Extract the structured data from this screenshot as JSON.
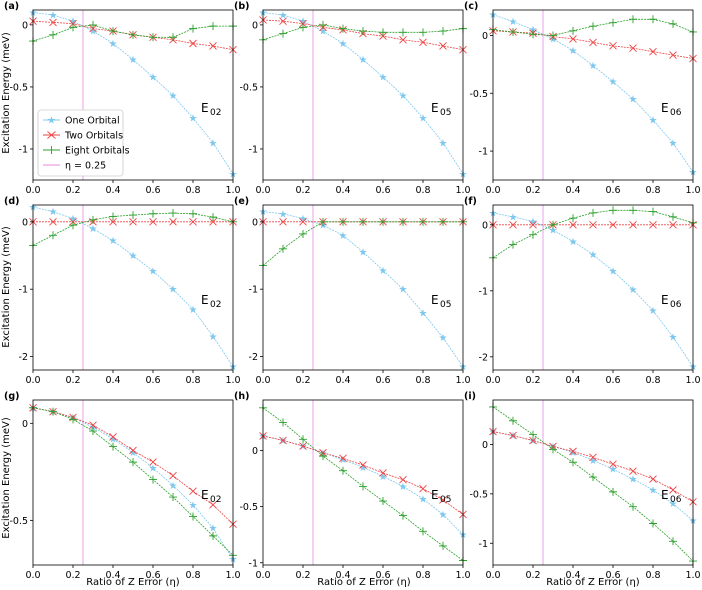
{
  "figure": {
    "ylabel": "Excitation Energy (meV)",
    "xlabel": "Ratio of Z Error (η)",
    "legend": [
      {
        "label": "One Orbital",
        "series": 0
      },
      {
        "label": "Two Orbitals",
        "series": 1
      },
      {
        "label": "Eight Orbitals",
        "series": 2
      },
      {
        "label": "η = 0.25",
        "series": 3
      }
    ]
  },
  "colors": {
    "one_orbital": "#7ec8ee",
    "two_orbitals": "#ee4444",
    "eight_orbitals": "#2ca02c",
    "eta_line": "#e68ae6",
    "axis": "#000000"
  },
  "chart_data": [
    {
      "type": "line",
      "panel_label": "(a)",
      "annotation": "E",
      "annotation_sub": "02",
      "x": [
        0,
        0.1,
        0.2,
        0.3,
        0.4,
        0.5,
        0.6,
        0.7,
        0.8,
        0.9,
        1.0
      ],
      "xlim": [
        0,
        1
      ],
      "ylim": [
        -1.25,
        0.12
      ],
      "xticks": [
        0,
        0.2,
        0.4,
        0.6,
        0.8,
        1.0
      ],
      "xtick_labels": [
        "0.0",
        "0.2",
        "0.4",
        "0.6",
        "0.8",
        "1.0"
      ],
      "yticks": [
        0,
        -0.5,
        -1
      ],
      "ytick_labels": [
        "0",
        "-0.5",
        "-1"
      ],
      "marker_line": 0.25,
      "series": [
        {
          "name": "One Orbital",
          "values": [
            0.1,
            0.08,
            0.03,
            -0.05,
            -0.15,
            -0.28,
            -0.42,
            -0.57,
            -0.75,
            -0.95,
            -1.2
          ]
        },
        {
          "name": "Two Orbitals",
          "values": [
            0.03,
            0.02,
            0.01,
            -0.03,
            -0.05,
            -0.08,
            -0.1,
            -0.12,
            -0.15,
            -0.17,
            -0.2
          ]
        },
        {
          "name": "Eight Orbitals",
          "values": [
            -0.13,
            -0.08,
            -0.02,
            0.0,
            -0.05,
            -0.08,
            -0.1,
            -0.1,
            -0.03,
            -0.01,
            -0.01
          ]
        }
      ]
    },
    {
      "type": "line",
      "panel_label": "(b)",
      "annotation": "E",
      "annotation_sub": "05",
      "x": [
        0,
        0.1,
        0.2,
        0.3,
        0.4,
        0.5,
        0.6,
        0.7,
        0.8,
        0.9,
        1.0
      ],
      "xlim": [
        0,
        1
      ],
      "ylim": [
        -1.25,
        0.12
      ],
      "xticks": [
        0,
        0.2,
        0.4,
        0.6,
        0.8,
        1.0
      ],
      "xtick_labels": [
        "0.0",
        "0.2",
        "0.4",
        "0.6",
        "0.8",
        "1.0"
      ],
      "yticks": [
        0,
        -0.5,
        -1
      ],
      "ytick_labels": [
        "0",
        "-0.5",
        "-1"
      ],
      "marker_line": 0.25,
      "series": [
        {
          "name": "One Orbital",
          "values": [
            0.1,
            0.08,
            0.03,
            -0.05,
            -0.15,
            -0.28,
            -0.42,
            -0.57,
            -0.75,
            -0.95,
            -1.2
          ]
        },
        {
          "name": "Two Orbitals",
          "values": [
            0.04,
            0.03,
            0.01,
            -0.02,
            -0.04,
            -0.07,
            -0.09,
            -0.12,
            -0.14,
            -0.17,
            -0.2
          ]
        },
        {
          "name": "Eight Orbitals",
          "values": [
            -0.12,
            -0.07,
            -0.02,
            0.0,
            -0.03,
            -0.05,
            -0.06,
            -0.06,
            -0.06,
            -0.05,
            -0.03
          ]
        }
      ]
    },
    {
      "type": "line",
      "panel_label": "(c)",
      "annotation": "E",
      "annotation_sub": "06",
      "x": [
        0,
        0.1,
        0.2,
        0.3,
        0.4,
        0.5,
        0.6,
        0.7,
        0.8,
        0.9,
        1.0
      ],
      "xlim": [
        0,
        1
      ],
      "ylim": [
        -1.25,
        0.22
      ],
      "xticks": [
        0,
        0.2,
        0.4,
        0.6,
        0.8,
        1.0
      ],
      "xtick_labels": [
        "0.0",
        "0.2",
        "0.4",
        "0.6",
        "0.8",
        "1.0"
      ],
      "yticks": [
        0,
        -0.5,
        -1
      ],
      "ytick_labels": [
        "0",
        "-0.5",
        "-1"
      ],
      "marker_line": 0.25,
      "series": [
        {
          "name": "One Orbital",
          "values": [
            0.18,
            0.12,
            0.05,
            -0.03,
            -0.13,
            -0.26,
            -0.4,
            -0.55,
            -0.73,
            -0.93,
            -1.18
          ]
        },
        {
          "name": "Two Orbitals",
          "values": [
            0.04,
            0.03,
            0.02,
            -0.01,
            -0.03,
            -0.06,
            -0.09,
            -0.11,
            -0.14,
            -0.17,
            -0.2
          ]
        },
        {
          "name": "Eight Orbitals",
          "values": [
            0.05,
            0.03,
            0.01,
            0.0,
            0.04,
            0.08,
            0.11,
            0.14,
            0.14,
            0.1,
            0.03
          ]
        }
      ]
    },
    {
      "type": "line",
      "panel_label": "(d)",
      "annotation": "E",
      "annotation_sub": "02",
      "x": [
        0,
        0.1,
        0.2,
        0.3,
        0.4,
        0.5,
        0.6,
        0.7,
        0.8,
        0.9,
        1.0
      ],
      "xlim": [
        0,
        1
      ],
      "ylim": [
        -2.2,
        0.25
      ],
      "xticks": [
        0,
        0.2,
        0.4,
        0.6,
        0.8,
        1.0
      ],
      "xtick_labels": [
        "0.0",
        "0.2",
        "0.4",
        "0.6",
        "0.8",
        "1.0"
      ],
      "yticks": [
        0,
        -1,
        -2
      ],
      "ytick_labels": [
        "0",
        "-1",
        "-2"
      ],
      "marker_line": 0.25,
      "series": [
        {
          "name": "One Orbital",
          "values": [
            0.22,
            0.15,
            0.05,
            -0.1,
            -0.28,
            -0.5,
            -0.73,
            -1.0,
            -1.3,
            -1.7,
            -2.15
          ]
        },
        {
          "name": "Two Orbitals",
          "values": [
            0,
            0,
            0,
            0,
            0,
            0,
            0,
            0,
            0,
            0,
            0
          ]
        },
        {
          "name": "Eight Orbitals",
          "values": [
            -0.35,
            -0.2,
            -0.05,
            0.03,
            0.08,
            0.1,
            0.12,
            0.13,
            0.12,
            0.07,
            0.0
          ]
        }
      ]
    },
    {
      "type": "line",
      "panel_label": "(e)",
      "annotation": "E",
      "annotation_sub": "05",
      "x": [
        0,
        0.1,
        0.2,
        0.3,
        0.4,
        0.5,
        0.6,
        0.7,
        0.8,
        0.9,
        1.0
      ],
      "xlim": [
        0,
        1
      ],
      "ylim": [
        -2.2,
        0.25
      ],
      "xticks": [
        0,
        0.2,
        0.4,
        0.6,
        0.8,
        1.0
      ],
      "xtick_labels": [
        "0.0",
        "0.2",
        "0.4",
        "0.6",
        "0.8",
        "1.0"
      ],
      "yticks": [
        0,
        -1,
        -2
      ],
      "ytick_labels": [
        "0",
        "-1",
        "-2"
      ],
      "marker_line": 0.25,
      "series": [
        {
          "name": "One Orbital",
          "values": [
            0.15,
            0.12,
            0.05,
            -0.05,
            -0.2,
            -0.45,
            -0.72,
            -1.0,
            -1.35,
            -1.72,
            -2.15
          ]
        },
        {
          "name": "Two Orbitals",
          "values": [
            0,
            0,
            0,
            0,
            0,
            0,
            0,
            0,
            0,
            0,
            0
          ]
        },
        {
          "name": "Eight Orbitals",
          "values": [
            -0.65,
            -0.4,
            -0.18,
            0.0,
            0.0,
            0.0,
            0.0,
            0.0,
            0.0,
            0.0,
            0.0
          ]
        }
      ]
    },
    {
      "type": "line",
      "panel_label": "(f)",
      "annotation": "E",
      "annotation_sub": "06",
      "x": [
        0,
        0.1,
        0.2,
        0.3,
        0.4,
        0.5,
        0.6,
        0.7,
        0.8,
        0.9,
        1.0
      ],
      "xlim": [
        0,
        1
      ],
      "ylim": [
        -2.2,
        0.3
      ],
      "xticks": [
        0,
        0.2,
        0.4,
        0.6,
        0.8,
        1.0
      ],
      "xtick_labels": [
        "0.0",
        "0.2",
        "0.4",
        "0.6",
        "0.8",
        "1.0"
      ],
      "yticks": [
        0,
        -1,
        -2
      ],
      "ytick_labels": [
        "0",
        "-1",
        "-2"
      ],
      "marker_line": 0.25,
      "series": [
        {
          "name": "One Orbital",
          "values": [
            0.18,
            0.12,
            0.05,
            -0.08,
            -0.25,
            -0.45,
            -0.7,
            -0.98,
            -1.3,
            -1.7,
            -2.15
          ]
        },
        {
          "name": "Two Orbitals",
          "values": [
            0,
            0,
            0,
            0,
            0,
            0,
            0,
            0,
            0,
            0,
            0
          ]
        },
        {
          "name": "Eight Orbitals",
          "values": [
            -0.5,
            -0.3,
            -0.15,
            0.0,
            0.1,
            0.18,
            0.22,
            0.22,
            0.2,
            0.12,
            0.03
          ]
        }
      ]
    },
    {
      "type": "line",
      "panel_label": "(g)",
      "annotation": "E",
      "annotation_sub": "02",
      "x": [
        0,
        0.1,
        0.2,
        0.3,
        0.4,
        0.5,
        0.6,
        0.7,
        0.8,
        0.9,
        1.0
      ],
      "xlim": [
        0,
        1
      ],
      "ylim": [
        -0.73,
        0.12
      ],
      "xticks": [
        0,
        0.2,
        0.4,
        0.6,
        0.8,
        1.0
      ],
      "xtick_labels": [
        "0.0",
        "0.2",
        "0.4",
        "0.6",
        "0.8",
        "1.0"
      ],
      "yticks": [
        0,
        -0.5
      ],
      "ytick_labels": [
        "0",
        "-0.5"
      ],
      "marker_line": 0.25,
      "series": [
        {
          "name": "One Orbital",
          "values": [
            0.08,
            0.06,
            0.03,
            -0.02,
            -0.08,
            -0.15,
            -0.23,
            -0.32,
            -0.42,
            -0.54,
            -0.7
          ]
        },
        {
          "name": "Two Orbitals",
          "values": [
            0.08,
            0.06,
            0.03,
            -0.01,
            -0.07,
            -0.14,
            -0.2,
            -0.27,
            -0.35,
            -0.42,
            -0.52
          ]
        },
        {
          "name": "Eight Orbitals",
          "values": [
            0.08,
            0.06,
            0.02,
            -0.04,
            -0.12,
            -0.2,
            -0.29,
            -0.38,
            -0.48,
            -0.58,
            -0.68
          ]
        }
      ]
    },
    {
      "type": "line",
      "panel_label": "(h)",
      "annotation": "E",
      "annotation_sub": "05",
      "x": [
        0,
        0.1,
        0.2,
        0.3,
        0.4,
        0.5,
        0.6,
        0.7,
        0.8,
        0.9,
        1.0
      ],
      "xlim": [
        0,
        1
      ],
      "ylim": [
        -1.02,
        0.45
      ],
      "xticks": [
        0,
        0.2,
        0.4,
        0.6,
        0.8,
        1.0
      ],
      "xtick_labels": [
        "0.0",
        "0.2",
        "0.4",
        "0.6",
        "0.8",
        "1.0"
      ],
      "yticks": [
        0,
        -0.5,
        -1
      ],
      "ytick_labels": [
        "0",
        "-0.5",
        "-1"
      ],
      "marker_line": 0.25,
      "series": [
        {
          "name": "One Orbital",
          "values": [
            0.13,
            0.09,
            0.04,
            -0.02,
            -0.08,
            -0.15,
            -0.23,
            -0.32,
            -0.43,
            -0.57,
            -0.75
          ]
        },
        {
          "name": "Two Orbitals",
          "values": [
            0.13,
            0.09,
            0.04,
            -0.02,
            -0.07,
            -0.13,
            -0.2,
            -0.26,
            -0.34,
            -0.44,
            -0.57
          ]
        },
        {
          "name": "Eight Orbitals",
          "values": [
            0.38,
            0.25,
            0.1,
            -0.05,
            -0.18,
            -0.32,
            -0.45,
            -0.58,
            -0.72,
            -0.85,
            -0.98
          ]
        }
      ]
    },
    {
      "type": "line",
      "panel_label": "(i)",
      "annotation": "E",
      "annotation_sub": "06",
      "x": [
        0,
        0.1,
        0.2,
        0.3,
        0.4,
        0.5,
        0.6,
        0.7,
        0.8,
        0.9,
        1.0
      ],
      "xlim": [
        0,
        1
      ],
      "ylim": [
        -1.22,
        0.45
      ],
      "xticks": [
        0,
        0.2,
        0.4,
        0.6,
        0.8,
        1.0
      ],
      "xtick_labels": [
        "0.0",
        "0.2",
        "0.4",
        "0.6",
        "0.8",
        "1.0"
      ],
      "yticks": [
        0,
        -0.5,
        -1
      ],
      "ytick_labels": [
        "0",
        "-0.5",
        "-1"
      ],
      "marker_line": 0.25,
      "series": [
        {
          "name": "One Orbital",
          "values": [
            0.13,
            0.09,
            0.04,
            -0.02,
            -0.08,
            -0.16,
            -0.25,
            -0.35,
            -0.46,
            -0.6,
            -0.77
          ]
        },
        {
          "name": "Two Orbitals",
          "values": [
            0.13,
            0.09,
            0.04,
            -0.02,
            -0.07,
            -0.13,
            -0.2,
            -0.27,
            -0.35,
            -0.46,
            -0.58
          ]
        },
        {
          "name": "Eight Orbitals",
          "values": [
            0.38,
            0.24,
            0.1,
            -0.05,
            -0.18,
            -0.33,
            -0.48,
            -0.63,
            -0.8,
            -0.98,
            -1.18
          ]
        }
      ]
    }
  ]
}
